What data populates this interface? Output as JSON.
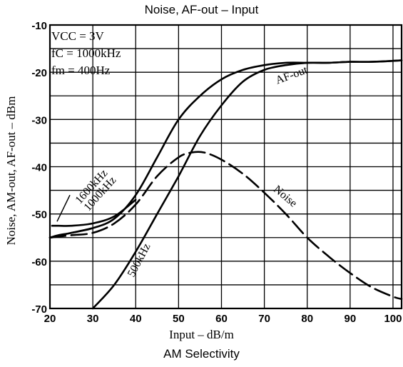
{
  "chart_data": {
    "type": "line",
    "top_title": "Noise, AF-out  –  Input",
    "bottom_title": "AM Selectivity",
    "xlabel": "Input  –  dB/m",
    "ylabel": "Noise, AM-out, AF-out  –  dBm",
    "xlim": [
      20,
      102
    ],
    "ylim": [
      -70,
      -10
    ],
    "xticks": [
      "20",
      "30",
      "40",
      "50",
      "60",
      "70",
      "80",
      "90",
      "100"
    ],
    "yticks": [
      "-10",
      "-20",
      "-30",
      "-40",
      "-50",
      "-60",
      "-70"
    ],
    "grid": true,
    "annotation": {
      "line1": "VCC = 3V",
      "line2": "fC = 1000kHz",
      "line3": "fm = 400Hz"
    },
    "series": [
      {
        "name": "AF-out",
        "style": "solid",
        "x": [
          20,
          25,
          30,
          35,
          40,
          45,
          50,
          55,
          60,
          65,
          70,
          75,
          80,
          85,
          90,
          95,
          102
        ],
        "y": [
          -55,
          -54,
          -53,
          -51,
          -46,
          -38,
          -30,
          -25,
          -21.5,
          -19.5,
          -18.5,
          -18,
          -18,
          -18,
          -17.8,
          -17.8,
          -17.5
        ]
      },
      {
        "name": "Noise",
        "style": "dashed",
        "x": [
          20,
          25,
          30,
          35,
          40,
          45,
          50,
          53,
          56,
          60,
          65,
          70,
          75,
          80,
          85,
          90,
          95,
          100,
          102
        ],
        "y": [
          -55,
          -54.5,
          -54,
          -52,
          -48,
          -42,
          -38,
          -37,
          -37,
          -38.5,
          -41.5,
          -45.5,
          -50,
          -55,
          -59,
          -62.5,
          -65.5,
          -67.5,
          -68
        ]
      },
      {
        "name": "500kHz",
        "style": "solid",
        "x": [
          30,
          35,
          40,
          45,
          50,
          55,
          60,
          65,
          70,
          75,
          80,
          85,
          90,
          95,
          102
        ],
        "y": [
          -70,
          -65,
          -58,
          -50,
          -42,
          -33.5,
          -27,
          -22,
          -19.5,
          -18.5,
          -18,
          -18,
          -17.8,
          -17.8,
          -17.5
        ]
      },
      {
        "name": "1600kHz",
        "style": "solid",
        "x": [
          20.5,
          22,
          25,
          30,
          35,
          40
        ],
        "y": [
          -52.5,
          -52.5,
          -52.5,
          -52,
          -50.5,
          -47
        ]
      },
      {
        "name": "1000kHz",
        "style": "solid",
        "x": [
          20,
          22,
          25,
          30
        ],
        "y": [
          -55,
          -54.5,
          -54,
          -53
        ]
      }
    ],
    "curve_labels": [
      "AF-out",
      "Noise",
      "500kHz",
      "1600kHz",
      "1000kHz"
    ]
  }
}
